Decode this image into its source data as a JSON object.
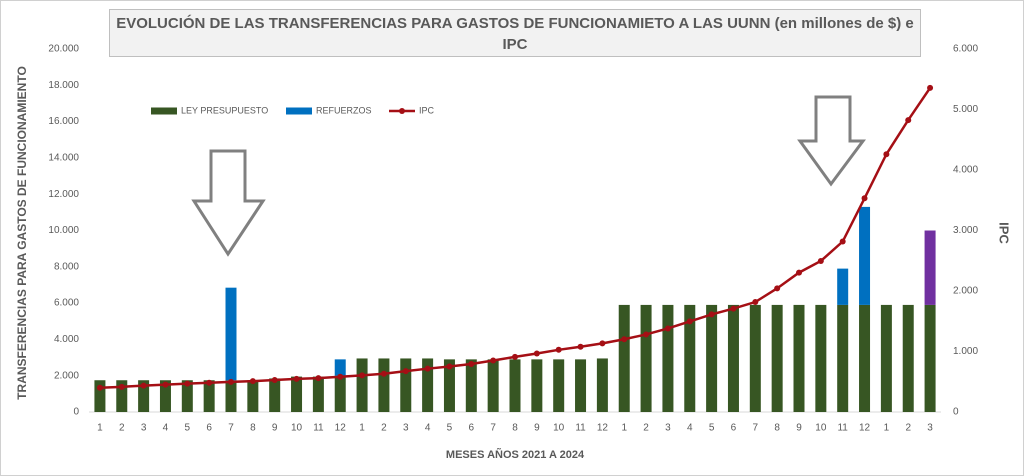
{
  "chart_data": {
    "type": "bar",
    "title": "EVOLUCIÓN DE LAS TRANSFERENCIAS PARA GASTOS DE FUNCIONAMIETO A LAS UUNN (en millones de $) e IPC",
    "x_label": "MESES AÑOS 2021  A 2024",
    "y_label": "TRANSFERENCIAS PARA GASTOS DE FUNCIONAMIENTO",
    "y2_label": "IPC",
    "categories": [
      "1",
      "2",
      "3",
      "4",
      "5",
      "6",
      "7",
      "8",
      "9",
      "10",
      "11",
      "12",
      "1",
      "2",
      "3",
      "4",
      "5",
      "6",
      "7",
      "8",
      "9",
      "10",
      "11",
      "12",
      "1",
      "2",
      "3",
      "4",
      "5",
      "6",
      "7",
      "8",
      "9",
      "10",
      "11",
      "12",
      "1",
      "2",
      "3"
    ],
    "series": [
      {
        "name": "LEY PRESUPUESTO",
        "color": "#375623",
        "type": "bar",
        "axis": "y",
        "values": [
          1750,
          1750,
          1750,
          1750,
          1750,
          1750,
          1750,
          1750,
          1850,
          1950,
          1950,
          2000,
          2950,
          2950,
          2950,
          2950,
          2900,
          2900,
          2900,
          2900,
          2900,
          2900,
          2900,
          2950,
          5900,
          5900,
          5900,
          5900,
          5900,
          5900,
          5900,
          5900,
          5900,
          5900,
          5900,
          5900,
          5900,
          5900,
          5900
        ]
      },
      {
        "name": "REFUERZOS",
        "color": "#0070c0",
        "type": "bar",
        "axis": "y",
        "point_colors": {
          "38": "#7030a0"
        },
        "values": [
          null,
          null,
          null,
          null,
          null,
          null,
          5100,
          null,
          null,
          null,
          null,
          900,
          null,
          null,
          null,
          null,
          null,
          null,
          null,
          null,
          null,
          null,
          null,
          null,
          null,
          null,
          null,
          null,
          null,
          null,
          null,
          null,
          null,
          null,
          2000,
          5400,
          null,
          null,
          4100
        ]
      },
      {
        "name": "IPC",
        "color": "#a50f15",
        "type": "line",
        "axis": "y2",
        "values": [
          401,
          416,
          435,
          453,
          468,
          483,
          498,
          510,
          528,
          547,
          560,
          582,
          605,
          633,
          676,
          716,
          752,
          793,
          851,
          911,
          967,
          1028,
          1079,
          1134,
          1203,
          1282,
          1381,
          1497,
          1613,
          1709,
          1818,
          2044,
          2304,
          2496,
          2818,
          3533,
          4261,
          4825,
          5357
        ]
      }
    ],
    "ylim": [
      0,
      20000
    ],
    "yticks": [
      0,
      {
        "value": 2000,
        "label": "2.000"
      },
      {
        "value": 4000,
        "label": "4.000"
      },
      {
        "value": 6000,
        "label": "6.000"
      },
      {
        "value": 8000,
        "label": "8.000"
      },
      {
        "value": 10000,
        "label": "10.000"
      },
      {
        "value": 12000,
        "label": "12.000"
      },
      {
        "value": 14000,
        "label": "14.000"
      },
      {
        "value": 16000,
        "label": "16.000"
      },
      {
        "value": 18000,
        "label": "18.000"
      },
      {
        "value": 20000,
        "label": "20.000"
      }
    ],
    "y2lim": [
      0,
      6000
    ],
    "y2ticks": [
      0,
      {
        "value": 1000,
        "label": "1.000"
      },
      {
        "value": 2000,
        "label": "2.000"
      },
      {
        "value": 3000,
        "label": "3.000"
      },
      {
        "value": 4000,
        "label": "4.000"
      },
      {
        "value": 5000,
        "label": "5.000"
      },
      {
        "value": 6000,
        "label": "6.000"
      }
    ],
    "grid": false
  }
}
